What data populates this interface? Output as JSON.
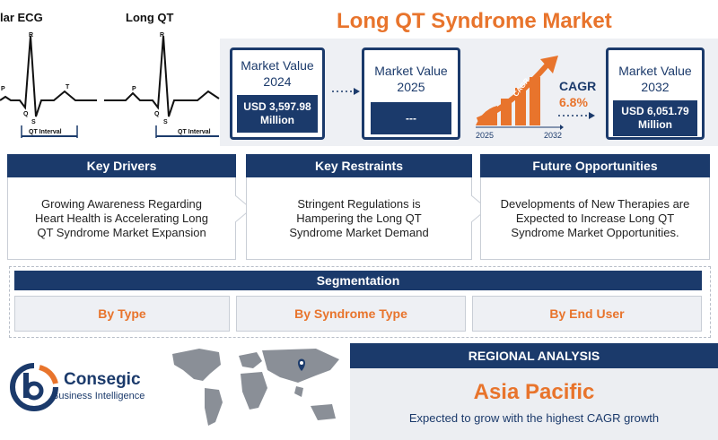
{
  "title": "Long QT Syndrome Market",
  "ecg": {
    "left_label": "lar ECG",
    "right_label": "Long QT",
    "wave_labels": {
      "p": "P",
      "q": "Q",
      "r": "R",
      "s": "S",
      "t": "T"
    },
    "interval_label": "QT Interval"
  },
  "metrics": {
    "card_2024": {
      "label": "Market Value",
      "year": "2024",
      "value_line1": "USD 3,597.98",
      "value_line2": "Million"
    },
    "card_2025": {
      "label": "Market Value",
      "year": "2025",
      "value": "---"
    },
    "cagr": {
      "label": "CAGR",
      "value": "6.8%",
      "arrow_text": "CAGR",
      "start_year": "2025",
      "end_year": "2032"
    },
    "card_2032": {
      "label": "Market Value",
      "year": "2032",
      "value_line1": "USD 6,051.79",
      "value_line2": "Million"
    }
  },
  "sections": {
    "drivers": {
      "heading": "Key Drivers",
      "text": "Growing Awareness Regarding Heart Health is Accelerating Long QT Syndrome Market Expansion"
    },
    "restraints": {
      "heading": "Key Restraints",
      "text": "Stringent Regulations is Hampering the Long QT Syndrome Market Demand"
    },
    "opportunities": {
      "heading": "Future Opportunities",
      "text": "Developments of New Therapies are Expected to Increase Long QT Syndrome Market Opportunities."
    }
  },
  "segmentation": {
    "heading": "Segmentation",
    "items": [
      "By Type",
      "By Syndrome Type",
      "By End User"
    ]
  },
  "brand": {
    "name": "Consegic",
    "tagline": "Business Intelligence"
  },
  "regional": {
    "heading": "REGIONAL ANALYSIS",
    "region": "Asia Pacific",
    "note": "Expected to grow with the highest CAGR growth"
  },
  "colors": {
    "navy": "#1b3a6b",
    "orange": "#e8742c",
    "light_band": "#eef0f4"
  }
}
